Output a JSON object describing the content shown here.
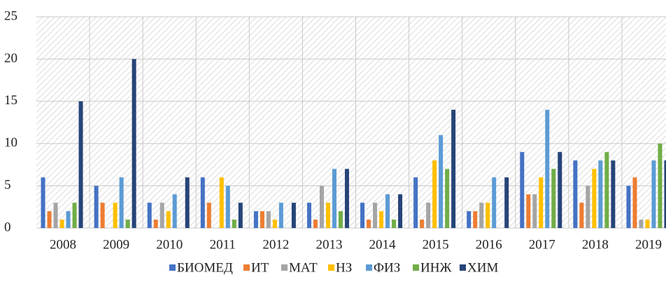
{
  "chart_data": {
    "type": "bar",
    "categories": [
      "2008",
      "2009",
      "2010",
      "2011",
      "2012",
      "2013",
      "2014",
      "2015",
      "2016",
      "2017",
      "2018",
      "2019"
    ],
    "series": [
      {
        "name": "БИОМЕД",
        "color": "#4472c4",
        "values": [
          6,
          5,
          3,
          6,
          2,
          3,
          3,
          6,
          2,
          9,
          8,
          5
        ]
      },
      {
        "name": "ИТ",
        "color": "#ed7d31",
        "values": [
          2,
          3,
          1,
          3,
          2,
          1,
          1,
          1,
          2,
          4,
          3,
          6
        ]
      },
      {
        "name": "МАТ",
        "color": "#a5a5a5",
        "values": [
          3,
          0,
          3,
          0,
          2,
          5,
          3,
          3,
          3,
          4,
          5,
          1
        ]
      },
      {
        "name": "НЗ",
        "color": "#ffc000",
        "values": [
          1,
          3,
          2,
          6,
          1,
          3,
          2,
          8,
          3,
          6,
          7,
          1
        ]
      },
      {
        "name": "ФИЗ",
        "color": "#5b9bd5",
        "values": [
          2,
          6,
          4,
          5,
          3,
          7,
          4,
          11,
          6,
          14,
          8,
          8
        ]
      },
      {
        "name": "ИНЖ",
        "color": "#70ad47",
        "values": [
          3,
          1,
          0,
          1,
          0,
          2,
          1,
          7,
          0,
          7,
          9,
          10
        ]
      },
      {
        "name": "ХИМ",
        "color": "#264478",
        "values": [
          15,
          20,
          6,
          3,
          3,
          7,
          4,
          14,
          6,
          9,
          8,
          8
        ]
      }
    ],
    "ylim": [
      0,
      25
    ],
    "yticks": [
      0,
      5,
      10,
      15,
      20,
      25
    ],
    "grid": true,
    "legend": "bottom"
  }
}
